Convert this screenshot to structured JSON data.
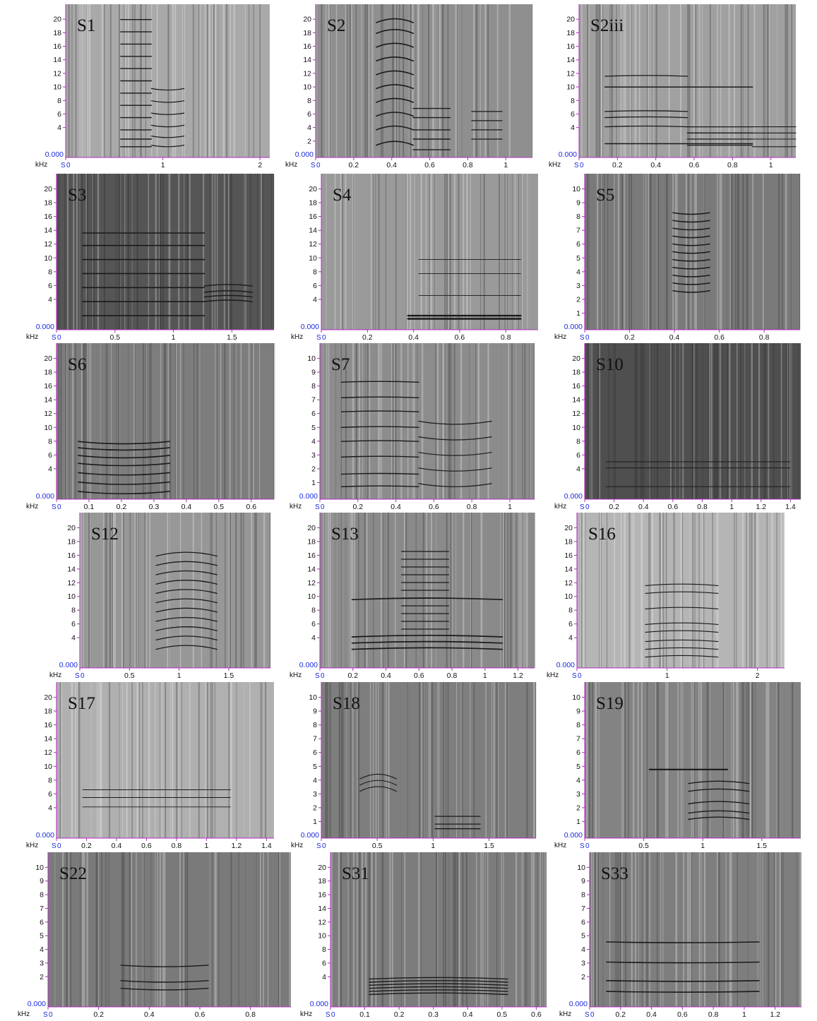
{
  "figure": {
    "y_unit_label": "kHz",
    "x_origin_label": "S",
    "panels": [
      {
        "label": "S1",
        "ymax": 22,
        "yticks": [
          "20",
          "18",
          "16",
          "14",
          "12",
          "10",
          "8",
          "6",
          "4"
        ],
        "yzero": "0.000",
        "xticks": [
          "0",
          "1",
          "2"
        ],
        "xmax": 2.1,
        "shade": "#a9a9a9"
      },
      {
        "label": "S2",
        "ymax": 22,
        "yticks": [
          "20",
          "18",
          "16",
          "14",
          "12",
          "10",
          "8",
          "6",
          "4",
          "2"
        ],
        "yzero": "0.000",
        "xticks": [
          "0",
          "0.2",
          "0.4",
          "0.6",
          "0.8",
          "1"
        ],
        "xmax": 1.14,
        "shade": "#8f8f8f"
      },
      {
        "label": "S2iii",
        "ymax": 22,
        "yticks": [
          "20",
          "18",
          "16",
          "14",
          "12",
          "10",
          "8",
          "6",
          "4"
        ],
        "yzero": "0.000",
        "xticks": [
          "0",
          "0.2",
          "0.4",
          "0.6",
          "0.8",
          "1"
        ],
        "xmax": 1.13,
        "shade": "#a0a0a0"
      },
      {
        "label": "S3",
        "ymax": 22,
        "yticks": [
          "20",
          "18",
          "16",
          "14",
          "12",
          "10",
          "8",
          "6",
          "4"
        ],
        "yzero": "0.000",
        "xticks": [
          "0",
          "0.5",
          "1",
          "1.5"
        ],
        "xmax": 1.86,
        "shade": "#555555"
      },
      {
        "label": "S4",
        "ymax": 22,
        "yticks": [
          "20",
          "18",
          "16",
          "14",
          "12",
          "10",
          "8",
          "6",
          "4"
        ],
        "yzero": "0.000",
        "xticks": [
          "0",
          "0.2",
          "0.4",
          "0.6",
          "0.8"
        ],
        "xmax": 0.94,
        "shade": "#9a9a9a"
      },
      {
        "label": "S5",
        "ymax": 11,
        "yticks": [
          "10",
          "9",
          "8",
          "7",
          "6",
          "5",
          "4",
          "3",
          "2",
          "1"
        ],
        "yzero": "0.000",
        "xticks": [
          "0",
          "0.2",
          "0.4",
          "0.6",
          "0.8"
        ],
        "xmax": 0.96,
        "shade": "#7a7a7a"
      },
      {
        "label": "S6",
        "ymax": 22,
        "yticks": [
          "20",
          "18",
          "16",
          "14",
          "12",
          "10",
          "8",
          "6",
          "4"
        ],
        "yzero": "0.000",
        "xticks": [
          "0",
          "0.1",
          "0.2",
          "0.3",
          "0.4",
          "0.5",
          "0.6"
        ],
        "xmax": 0.67,
        "shade": "#7d7d7d"
      },
      {
        "label": "S7",
        "ymax": 11,
        "yticks": [
          "10",
          "9",
          "8",
          "7",
          "6",
          "5",
          "4",
          "3",
          "2",
          "1"
        ],
        "yzero": "0.000",
        "xticks": [
          "0",
          "0.2",
          "0.4",
          "0.6",
          "0.8",
          "1"
        ],
        "xmax": 1.13,
        "shade": "#8c8c8c"
      },
      {
        "label": "S10",
        "ymax": 22,
        "yticks": [
          "20",
          "18",
          "16",
          "14",
          "12",
          "10",
          "8",
          "6",
          "4"
        ],
        "yzero": "0.000",
        "xticks": [
          "0",
          "0.2",
          "0.4",
          "0.6",
          "0.8",
          "1",
          "1.2",
          "1.4"
        ],
        "xmax": 1.47,
        "shade": "#4f4f4f"
      },
      {
        "label": "S12",
        "ymax": 22,
        "yticks": [
          "20",
          "18",
          "16",
          "14",
          "12",
          "10",
          "8",
          "6",
          "4"
        ],
        "yzero": "0.000",
        "xticks": [
          "0",
          "0.5",
          "1",
          "1.5"
        ],
        "xmax": 1.92,
        "shade": "#979797"
      },
      {
        "label": "S13",
        "ymax": 22,
        "yticks": [
          "20",
          "18",
          "16",
          "14",
          "12",
          "10",
          "8",
          "6",
          "4"
        ],
        "yzero": "0.000",
        "xticks": [
          "0",
          "0.2",
          "0.4",
          "0.6",
          "0.8",
          "1",
          "1.2"
        ],
        "xmax": 1.3,
        "shade": "#8a8a8a"
      },
      {
        "label": "S16",
        "ymax": 22,
        "yticks": [
          "20",
          "18",
          "16",
          "14",
          "12",
          "10",
          "8",
          "6",
          "4"
        ],
        "yzero": "0.000",
        "xticks": [
          "0",
          "1",
          "2"
        ],
        "xmax": 2.3,
        "shade": "#b5b5b5"
      },
      {
        "label": "S17",
        "ymax": 22,
        "yticks": [
          "20",
          "18",
          "16",
          "14",
          "12",
          "10",
          "8",
          "6",
          "4"
        ],
        "yzero": "0.000",
        "xticks": [
          "0",
          "0.2",
          "0.4",
          "0.6",
          "0.8",
          "1",
          "1.2",
          "1.4"
        ],
        "xmax": 1.45,
        "shade": "#b0b0b0"
      },
      {
        "label": "S18",
        "ymax": 11,
        "yticks": [
          "10",
          "9",
          "8",
          "7",
          "6",
          "5",
          "4",
          "3",
          "2",
          "1"
        ],
        "yzero": "0.000",
        "xticks": [
          "0",
          "0.5",
          "1",
          "1.5"
        ],
        "xmax": 1.92,
        "shade": "#7e7e7e"
      },
      {
        "label": "S19",
        "ymax": 11,
        "yticks": [
          "10",
          "9",
          "8",
          "7",
          "6",
          "5",
          "4",
          "3",
          "2",
          "1"
        ],
        "yzero": "0.000",
        "xticks": [
          "0",
          "0.5",
          "1",
          "1.5"
        ],
        "xmax": 1.83,
        "shade": "#838383"
      },
      {
        "label": "S22",
        "ymax": 11,
        "yticks": [
          "10",
          "9",
          "8",
          "7",
          "6",
          "5",
          "4",
          "3",
          "2"
        ],
        "yzero": "0.000",
        "xticks": [
          "0",
          "0.2",
          "0.4",
          "0.6",
          "0.8"
        ],
        "xmax": 0.96,
        "shade": "#7a7a7a"
      },
      {
        "label": "S31",
        "ymax": 22,
        "yticks": [
          "20",
          "18",
          "16",
          "14",
          "12",
          "10",
          "8",
          "6",
          "4"
        ],
        "yzero": "0.000",
        "xticks": [
          "0",
          "0.1",
          "0.2",
          "0.3",
          "0.4",
          "0.5",
          "0.6"
        ],
        "xmax": 0.63,
        "shade": "#7c7c7c"
      },
      {
        "label": "S33",
        "ymax": 11,
        "yticks": [
          "10",
          "9",
          "8",
          "7",
          "6",
          "5",
          "4",
          "3",
          "2"
        ],
        "yzero": "0.000",
        "xticks": [
          "0",
          "0.2",
          "0.4",
          "0.6",
          "0.8",
          "1",
          "1.2"
        ],
        "xmax": 1.37,
        "shade": "#7e7e7e"
      }
    ]
  }
}
